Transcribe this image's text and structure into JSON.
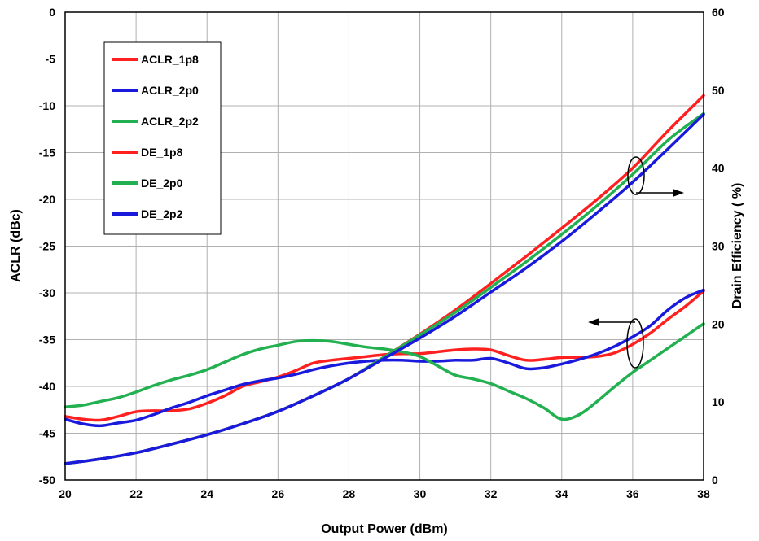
{
  "chart_data": {
    "type": "line",
    "xlabel": "Output Power (dBm)",
    "ylabel": "ACLR (dBc)",
    "y2label": "Drain Efficiency ( %)",
    "xlim": [
      20,
      38
    ],
    "ylim": [
      -50,
      0
    ],
    "y2lim": [
      0,
      60
    ],
    "xticks": [
      "20",
      "22",
      "24",
      "26",
      "28",
      "30",
      "32",
      "34",
      "36",
      "38"
    ],
    "yticks": [
      "0",
      "-5",
      "-10",
      "-15",
      "-20",
      "-25",
      "-30",
      "-35",
      "-40",
      "-45",
      "-50"
    ],
    "y2ticks": [
      "60",
      "50",
      "40",
      "30",
      "20",
      "10",
      "0"
    ],
    "grid": true,
    "legend_position": "top-left",
    "colors": {
      "red": "#ff2020",
      "blue": "#1a1adc",
      "green": "#22b050"
    },
    "series": [
      {
        "name": "ACLR_1p8",
        "axis": "left",
        "color": "#ff2020",
        "x": [
          20,
          20.5,
          21,
          21.5,
          22,
          22.5,
          23,
          23.5,
          24,
          24.5,
          25,
          25.5,
          26,
          26.5,
          27,
          27.5,
          28,
          28.5,
          29,
          29.5,
          30,
          30.5,
          31,
          31.5,
          32,
          32.5,
          33,
          33.5,
          34,
          34.5,
          35,
          35.5,
          36,
          36.5,
          37,
          37.5,
          38
        ],
        "y": [
          -43.2,
          -43.5,
          -43.6,
          -43.2,
          -42.7,
          -42.6,
          -42.6,
          -42.4,
          -41.8,
          -41.0,
          -40.0,
          -39.5,
          -39.0,
          -38.3,
          -37.5,
          -37.2,
          -37.0,
          -36.8,
          -36.6,
          -36.5,
          -36.5,
          -36.3,
          -36.1,
          -36.0,
          -36.1,
          -36.7,
          -37.2,
          -37.1,
          -36.9,
          -36.9,
          -36.8,
          -36.4,
          -35.5,
          -34.3,
          -32.8,
          -31.4,
          -29.8
        ]
      },
      {
        "name": "ACLR_2p0",
        "axis": "left",
        "color": "#1a1adc",
        "x": [
          20,
          20.5,
          21,
          21.5,
          22,
          22.5,
          23,
          23.5,
          24,
          24.5,
          25,
          25.5,
          26,
          26.5,
          27,
          27.5,
          28,
          28.5,
          29,
          29.5,
          30,
          30.5,
          31,
          31.5,
          32,
          32.5,
          33,
          33.5,
          34,
          34.5,
          35,
          35.5,
          36,
          36.5,
          37,
          37.5,
          38
        ],
        "y": [
          -43.5,
          -44.0,
          -44.2,
          -43.9,
          -43.6,
          -43.0,
          -42.3,
          -41.7,
          -41.0,
          -40.4,
          -39.8,
          -39.4,
          -39.1,
          -38.7,
          -38.2,
          -37.8,
          -37.5,
          -37.3,
          -37.2,
          -37.2,
          -37.3,
          -37.3,
          -37.2,
          -37.2,
          -37.0,
          -37.5,
          -38.1,
          -38.0,
          -37.6,
          -37.1,
          -36.5,
          -35.7,
          -34.7,
          -33.5,
          -31.8,
          -30.5,
          -29.7
        ]
      },
      {
        "name": "ACLR_2p2",
        "axis": "left",
        "color": "#22b050",
        "x": [
          20,
          20.5,
          21,
          21.5,
          22,
          22.5,
          23,
          23.5,
          24,
          24.5,
          25,
          25.5,
          26,
          26.5,
          27,
          27.5,
          28,
          28.5,
          29,
          29.5,
          30,
          30.5,
          31,
          31.5,
          32,
          32.5,
          33,
          33.5,
          34,
          34.5,
          35,
          35.5,
          36,
          36.5,
          37,
          37.5,
          38
        ],
        "y": [
          -42.2,
          -42.0,
          -41.6,
          -41.2,
          -40.6,
          -39.9,
          -39.3,
          -38.8,
          -38.2,
          -37.4,
          -36.6,
          -36.0,
          -35.6,
          -35.2,
          -35.1,
          -35.2,
          -35.5,
          -35.8,
          -36.0,
          -36.3,
          -36.8,
          -37.8,
          -38.8,
          -39.2,
          -39.7,
          -40.5,
          -41.3,
          -42.3,
          -43.5,
          -43.0,
          -41.6,
          -40.0,
          -38.5,
          -37.2,
          -35.9,
          -34.6,
          -33.3
        ]
      },
      {
        "name": "DE_1p8",
        "axis": "right",
        "color": "#ff2020",
        "x": [
          20,
          21,
          22,
          23,
          24,
          25,
          26,
          27,
          28,
          29,
          30,
          31,
          32,
          33,
          34,
          35,
          36,
          37,
          38
        ],
        "y": [
          2.1,
          2.7,
          3.5,
          4.6,
          5.8,
          7.2,
          8.8,
          10.8,
          13.0,
          15.8,
          18.7,
          21.8,
          25.2,
          28.7,
          32.3,
          36.0,
          40.0,
          44.8,
          49.3
        ]
      },
      {
        "name": "DE_2p0",
        "axis": "right",
        "color": "#22b050",
        "x": [
          20,
          21,
          22,
          23,
          24,
          25,
          26,
          27,
          28,
          29,
          30,
          31,
          32,
          33,
          34,
          35,
          36,
          37,
          38
        ],
        "y": [
          2.1,
          2.7,
          3.5,
          4.6,
          5.8,
          7.2,
          8.8,
          10.8,
          13.0,
          15.8,
          18.6,
          21.5,
          24.7,
          28.0,
          31.5,
          35.2,
          39.2,
          43.6,
          47.0
        ]
      },
      {
        "name": "DE_2p2",
        "axis": "right",
        "color": "#1a1adc",
        "x": [
          20,
          21,
          22,
          23,
          24,
          25,
          26,
          27,
          28,
          29,
          30,
          31,
          32,
          33,
          34,
          35,
          36,
          37,
          38
        ],
        "y": [
          2.1,
          2.7,
          3.5,
          4.6,
          5.8,
          7.2,
          8.8,
          10.8,
          13.0,
          15.6,
          18.2,
          21.0,
          24.1,
          27.2,
          30.6,
          34.3,
          38.2,
          42.5,
          46.9
        ]
      }
    ]
  }
}
